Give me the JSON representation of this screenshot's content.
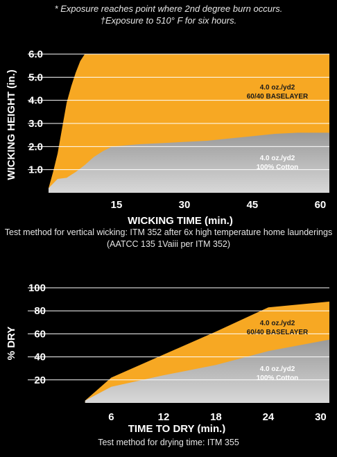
{
  "notes": {
    "line1": "* Exposure reaches point where 2nd degree burn occurs.",
    "line2": "†Exposure to 510°  F for six hours."
  },
  "colors": {
    "baselayer": "#f7a823",
    "cotton": "#8e8e8e",
    "background": "#000000",
    "grid": "#ffffff"
  },
  "chart_data": [
    {
      "type": "area",
      "xlabel": "WICKING TIME (min.)",
      "ylabel": "WICKING HEIGHT (in.)",
      "xlim": [
        0,
        62
      ],
      "ylim": [
        0,
        6.0
      ],
      "xticks": [
        "15",
        "30",
        "45",
        "60"
      ],
      "yticks": [
        "1.0",
        "2.0",
        "3.0",
        "4.0",
        "5.0",
        "6.0"
      ],
      "series": [
        {
          "name": "4.0 oz./yd2\n60/40 BASELAYER",
          "x": [
            0,
            1,
            2,
            3,
            4,
            5,
            6,
            7,
            8,
            8.5,
            62
          ],
          "y": [
            0.2,
            0.9,
            1.7,
            2.8,
            3.9,
            4.6,
            5.2,
            5.7,
            6.0,
            6.0,
            6.0
          ]
        },
        {
          "name": "4.0 oz./yd2\n100% Cotton",
          "x": [
            0,
            2,
            4,
            6,
            8,
            10,
            12,
            14,
            20,
            25,
            30,
            35,
            40,
            45,
            50,
            55,
            60,
            62
          ],
          "y": [
            0.2,
            0.6,
            0.65,
            0.9,
            1.2,
            1.55,
            1.8,
            2.0,
            2.1,
            2.15,
            2.2,
            2.25,
            2.35,
            2.45,
            2.55,
            2.6,
            2.6,
            2.6
          ]
        }
      ],
      "caption": "Test method for vertical wicking: ITM 352 after 6x high temperature home launderings (AATCC 135 1Vaiii per ITM 352)"
    },
    {
      "type": "area",
      "xlabel": "TIME TO DRY (min.)",
      "ylabel": "% DRY",
      "xlim": [
        0,
        31
      ],
      "ylim": [
        0,
        100
      ],
      "xticks": [
        "6",
        "12",
        "18",
        "24",
        "30"
      ],
      "yticks": [
        "20",
        "40",
        "60",
        "80",
        "100"
      ],
      "series": [
        {
          "name": "4.0 oz./yd2\n60/40 BASELAYER",
          "x": [
            3,
            6,
            12,
            18,
            24,
            31
          ],
          "y": [
            2,
            22,
            42,
            62,
            83,
            88
          ]
        },
        {
          "name": "4.0 oz./yd2\n100% Cotton",
          "x": [
            3,
            6,
            12,
            18,
            24,
            31
          ],
          "y": [
            2,
            14,
            24,
            33,
            45,
            55
          ]
        }
      ],
      "caption": "Test method for drying time: ITM 355"
    }
  ]
}
